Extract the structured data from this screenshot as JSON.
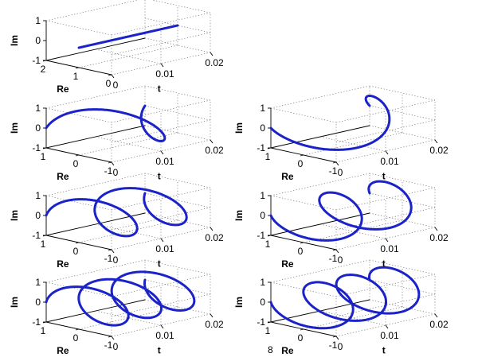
{
  "page": {
    "number": "8"
  },
  "chart_data": [
    {
      "type": "line3d",
      "panel": "row1-left",
      "xlabel": "t",
      "ylabel": "Re",
      "zlabel": "Im",
      "xticks": [
        "0",
        "0.01",
        "0.02"
      ],
      "yticks": [
        "2",
        "1",
        "0"
      ],
      "zticks": [
        "-1",
        "0",
        "1"
      ],
      "xlim": [
        0,
        0.02
      ],
      "ylim": [
        0,
        2
      ],
      "zlim": [
        -1,
        1
      ],
      "grid": true,
      "series": [
        {
          "freq_cycles": 0,
          "re": 1,
          "im": 0
        }
      ]
    },
    {
      "type": "line3d",
      "panel": "row2-left",
      "xlabel": "t",
      "ylabel": "Re",
      "zlabel": "Im",
      "xticks": [
        "0",
        "0.01",
        "0.02"
      ],
      "yticks": [
        "1",
        "0",
        "-1"
      ],
      "zticks": [
        "-1",
        "0",
        "1"
      ],
      "xlim": [
        0,
        0.02
      ],
      "ylim": [
        -1,
        1
      ],
      "zlim": [
        -1,
        1
      ],
      "grid": true,
      "series": [
        {
          "freq_cycles": 1,
          "direction": 1
        }
      ]
    },
    {
      "type": "line3d",
      "panel": "row2-right",
      "xlabel": "t",
      "ylabel": "Re",
      "zlabel": "Im",
      "xticks": [
        "0",
        "0.01",
        "0.02"
      ],
      "yticks": [
        "1",
        "0",
        "-1"
      ],
      "zticks": [
        "-1",
        "0",
        "1"
      ],
      "xlim": [
        0,
        0.02
      ],
      "ylim": [
        -1,
        1
      ],
      "zlim": [
        -1,
        1
      ],
      "grid": true,
      "series": [
        {
          "freq_cycles": 1,
          "direction": -1
        }
      ]
    },
    {
      "type": "line3d",
      "panel": "row3-left",
      "xlabel": "t",
      "ylabel": "Re",
      "zlabel": "Im",
      "xticks": [
        "0",
        "0.01",
        "0.02"
      ],
      "yticks": [
        "1",
        "0",
        "-1"
      ],
      "zticks": [
        "-1",
        "0",
        "1"
      ],
      "xlim": [
        0,
        0.02
      ],
      "ylim": [
        -1,
        1
      ],
      "zlim": [
        -1,
        1
      ],
      "grid": true,
      "series": [
        {
          "freq_cycles": 2,
          "direction": 1
        }
      ]
    },
    {
      "type": "line3d",
      "panel": "row3-right",
      "xlabel": "t",
      "ylabel": "Re",
      "zlabel": "Im",
      "xticks": [
        "0",
        "0.01",
        "0.02"
      ],
      "yticks": [
        "1",
        "0",
        "-1"
      ],
      "zticks": [
        "-1",
        "0",
        "1"
      ],
      "xlim": [
        0,
        0.02
      ],
      "ylim": [
        -1,
        1
      ],
      "zlim": [
        -1,
        1
      ],
      "grid": true,
      "series": [
        {
          "freq_cycles": 2,
          "direction": -1
        }
      ]
    },
    {
      "type": "line3d",
      "panel": "row4-left",
      "xlabel": "t",
      "ylabel": "Re",
      "zlabel": "Im",
      "xticks": [
        "0",
        "0.01",
        "0.02"
      ],
      "yticks": [
        "1",
        "0",
        "-1"
      ],
      "zticks": [
        "-1",
        "0",
        "1"
      ],
      "xlim": [
        0,
        0.02
      ],
      "ylim": [
        -1,
        1
      ],
      "zlim": [
        -1,
        1
      ],
      "grid": true,
      "series": [
        {
          "freq_cycles": 3,
          "direction": 1
        }
      ]
    },
    {
      "type": "line3d",
      "panel": "row4-right",
      "xlabel": "t",
      "ylabel": "Re",
      "zlabel": "Im",
      "xticks": [
        "0",
        "0.01",
        "0.02"
      ],
      "yticks": [
        "1",
        "0",
        "-1"
      ],
      "zticks": [
        "-1",
        "0",
        "1"
      ],
      "xlim": [
        0,
        0.02
      ],
      "ylim": [
        -1,
        1
      ],
      "zlim": [
        -1,
        1
      ],
      "grid": true,
      "series": [
        {
          "freq_cycles": 3,
          "direction": -1
        }
      ]
    }
  ],
  "colors": {
    "curve": "#1a22c8",
    "axes": "#000000",
    "grid": "#555555"
  }
}
